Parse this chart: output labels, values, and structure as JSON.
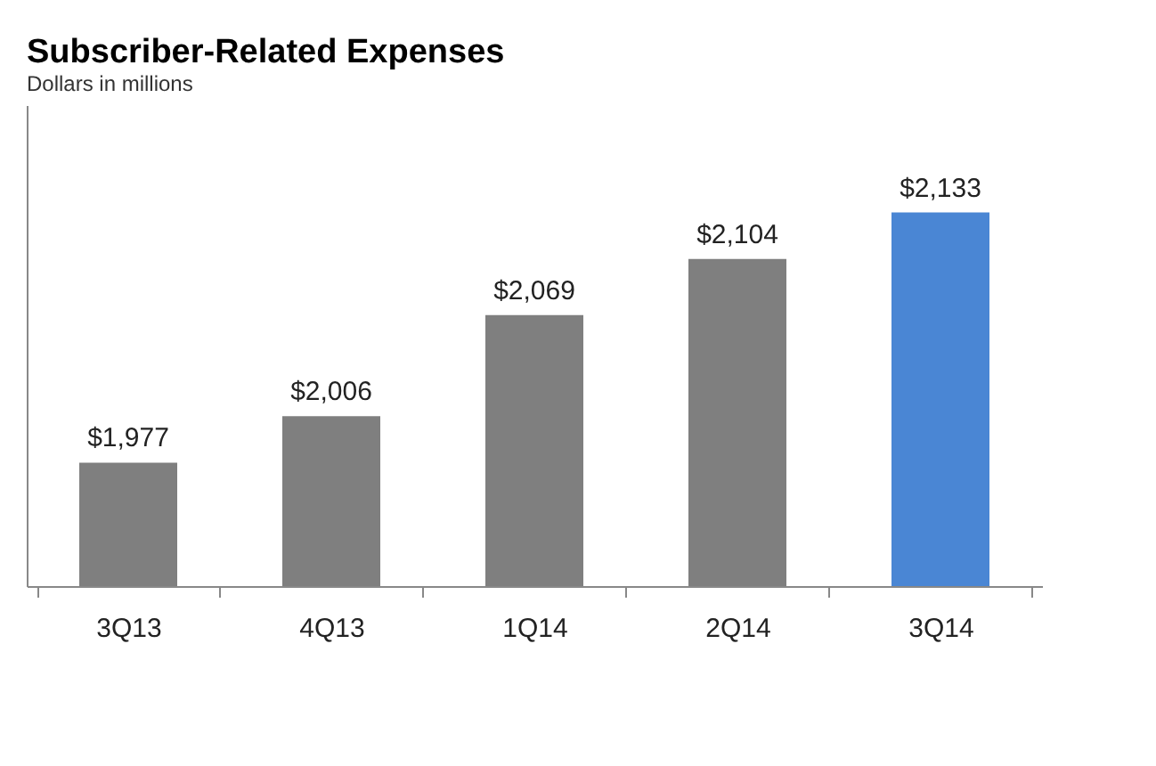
{
  "chart_data": {
    "type": "bar",
    "title": "Subscriber-Related Expenses",
    "subtitle": "Dollars in millions",
    "categories": [
      "3Q13",
      "4Q13",
      "1Q14",
      "2Q14",
      "3Q14"
    ],
    "values": [
      1977,
      2006,
      2069,
      2104,
      2133
    ],
    "colors": [
      "#7f7f7f",
      "#7f7f7f",
      "#7f7f7f",
      "#7f7f7f",
      "#4a86d4"
    ],
    "value_labels": [
      "$1,977",
      "$2,006",
      "$2,069",
      "$2,104",
      "$2,133"
    ],
    "ylim": [
      1900,
      2200
    ],
    "tick_labels": "x",
    "grid": false
  }
}
